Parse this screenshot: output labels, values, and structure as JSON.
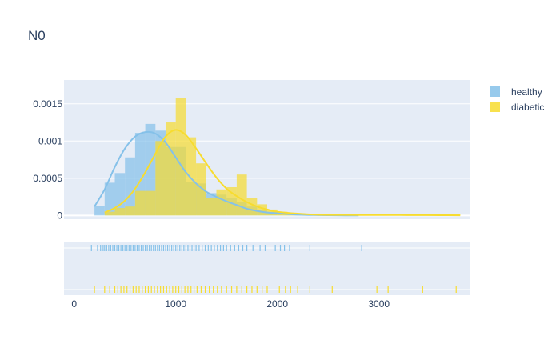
{
  "chart_data": {
    "type": "histogram-kde-rug",
    "title": "N0",
    "xlabel": "",
    "ylabel": "",
    "xlim": [
      -100,
      3900
    ],
    "ylim": [
      -5e-05,
      0.00182
    ],
    "x_ticks": [
      0,
      1000,
      2000,
      3000
    ],
    "y_ticks": [
      0,
      0.0005,
      0.001,
      0.0015
    ],
    "y_tick_labels": [
      "0",
      "0.0005",
      "0.001",
      "0.0015"
    ],
    "grid": true,
    "legend_position": "top-right",
    "bin_width": 100,
    "series": [
      {
        "name": "healthy",
        "color": "#85C1E9",
        "histogram": {
          "bin_starts": [
            200,
            300,
            400,
            500,
            600,
            700,
            800,
            900,
            1000,
            1100,
            1200,
            1300,
            1400,
            1500,
            1600,
            1700,
            1800,
            1900,
            2000,
            2100,
            2200,
            2300,
            2400,
            2500,
            2600,
            2700,
            2800
          ],
          "density": [
            0.00013,
            0.00044,
            0.00057,
            0.00078,
            0.00111,
            0.00123,
            0.00114,
            0.00092,
            0.00092,
            0.00045,
            0.00043,
            0.0003,
            0.00028,
            0.00024,
            0.00018,
            0.00012,
            8e-05,
            5e-05,
            3e-05,
            2e-05,
            1e-05,
            1e-05,
            1e-05,
            1e-05,
            1e-05,
            1e-05,
            1e-05
          ]
        },
        "kde": {
          "x": [
            200,
            300,
            400,
            500,
            600,
            700,
            800,
            900,
            1000,
            1100,
            1200,
            1300,
            1400,
            1500,
            1600,
            1700,
            1800,
            1900,
            2000,
            2100,
            2200,
            2400,
            2600,
            2800
          ],
          "y": [
            0.00012,
            0.00035,
            0.00065,
            0.0009,
            0.00106,
            0.00112,
            0.0011,
            0.00098,
            0.00078,
            0.00058,
            0.00043,
            0.00032,
            0.00025,
            0.00019,
            0.00014,
            9e-05,
            6e-05,
            4e-05,
            3e-05,
            2e-05,
            1e-05,
            5e-06,
            2e-06,
            1e-06
          ]
        },
        "rug": [
          170,
          230,
          260,
          285,
          300,
          320,
          340,
          360,
          380,
          400,
          420,
          440,
          460,
          480,
          500,
          520,
          540,
          560,
          580,
          600,
          620,
          640,
          660,
          680,
          700,
          720,
          740,
          760,
          780,
          800,
          820,
          840,
          860,
          880,
          900,
          920,
          940,
          960,
          980,
          1000,
          1020,
          1040,
          1060,
          1080,
          1100,
          1120,
          1140,
          1160,
          1180,
          1200,
          1230,
          1260,
          1290,
          1320,
          1350,
          1380,
          1410,
          1440,
          1470,
          1500,
          1540,
          1580,
          1620,
          1660,
          1700,
          1760,
          1830,
          1880,
          1980,
          2030,
          2070,
          2120,
          2320,
          2830
        ]
      },
      {
        "name": "diabetic",
        "color": "#F7DC2F",
        "histogram": {
          "bin_starts": [
            300,
            400,
            500,
            600,
            700,
            800,
            900,
            1000,
            1100,
            1200,
            1300,
            1400,
            1500,
            1600,
            1700,
            1800,
            1900,
            2000,
            2100,
            2200,
            2300,
            2400,
            2500,
            2600,
            2700,
            2800,
            2900,
            3000,
            3100,
            3200,
            3300,
            3400,
            3500,
            3600,
            3700
          ],
          "density": [
            5e-05,
            0.0001,
            0.00012,
            0.00033,
            0.00033,
            0.001,
            0.00125,
            0.00158,
            0.00105,
            0.0007,
            0.00023,
            0.00035,
            0.00038,
            0.00055,
            0.00023,
            0.00015,
            8e-05,
            5e-05,
            2e-05,
            2e-05,
            1e-05,
            1e-05,
            2e-05,
            1e-05,
            0.0,
            0.0,
            2e-05,
            2e-05,
            0.0,
            0.0,
            0.0,
            2e-05,
            0.0,
            0.0,
            2e-05
          ]
        },
        "kde": {
          "x": [
            300,
            400,
            500,
            600,
            700,
            800,
            900,
            1000,
            1100,
            1200,
            1300,
            1400,
            1500,
            1600,
            1700,
            1800,
            1900,
            2000,
            2200,
            2400,
            2600,
            2800,
            3000,
            3200,
            3400,
            3600,
            3800
          ],
          "y": [
            4e-05,
            0.0001,
            0.0002,
            0.00036,
            0.00058,
            0.00083,
            0.00106,
            0.00115,
            0.00108,
            0.0009,
            0.0007,
            0.00051,
            0.00036,
            0.00026,
            0.00018,
            0.00012,
            8e-05,
            5e-05,
            2.5e-05,
            1e-05,
            8e-06,
            6e-06,
            6e-06,
            6e-06,
            5e-06,
            4e-06,
            2e-06
          ]
        },
        "rug": [
          200,
          300,
          350,
          400,
          430,
          460,
          490,
          520,
          550,
          580,
          610,
          640,
          670,
          700,
          730,
          760,
          790,
          820,
          850,
          880,
          910,
          940,
          970,
          1000,
          1030,
          1060,
          1090,
          1120,
          1150,
          1180,
          1210,
          1250,
          1290,
          1330,
          1370,
          1410,
          1450,
          1500,
          1550,
          1600,
          1650,
          1700,
          1750,
          1800,
          1850,
          1900,
          2020,
          2080,
          2130,
          2200,
          2320,
          2540,
          2980,
          3090,
          3430,
          3760
        ]
      }
    ]
  }
}
